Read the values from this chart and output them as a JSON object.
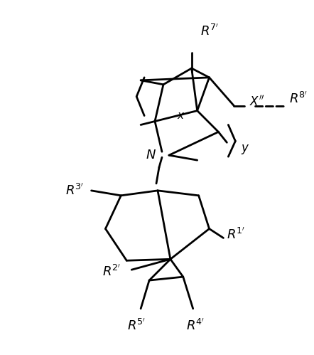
{
  "figsize": [
    4.42,
    4.99
  ],
  "dpi": 100,
  "bg_color": "#ffffff",
  "lw": 2.0,
  "color": "black"
}
